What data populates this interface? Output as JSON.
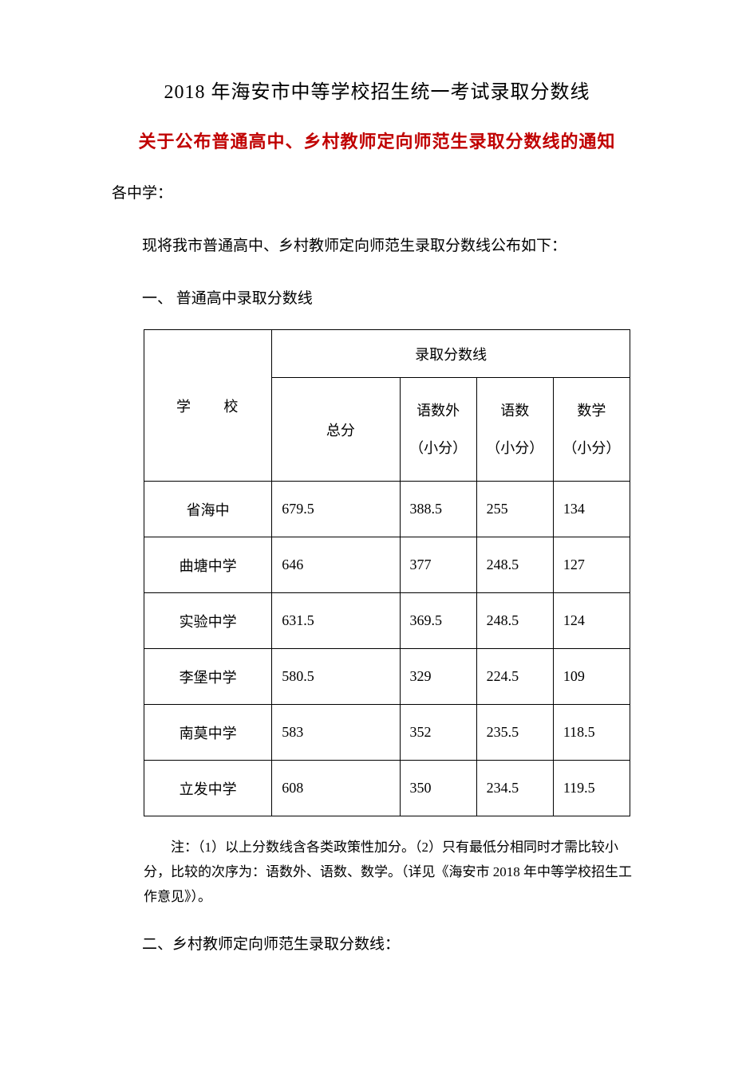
{
  "title_main": "2018 年海安市中等学校招生统一考试录取分数线",
  "title_sub": "关于公布普通高中、乡村教师定向师范生录取分数线的通知",
  "greeting": "各中学：",
  "intro": "现将我市普通高中、乡村教师定向师范生录取分数线公布如下：",
  "section1": "一、 普通高中录取分数线",
  "table": {
    "header_school": "学　　校",
    "header_scoreline": "录取分数线",
    "header_total": "总分",
    "header_ysw": "语数外",
    "header_ys": "语数",
    "header_sx": "数学",
    "header_sub_unit": "（小分）",
    "rows": [
      {
        "school": "省海中",
        "total": "679.5",
        "ysw": "388.5",
        "ys": "255",
        "sx": "134"
      },
      {
        "school": "曲塘中学",
        "total": "646",
        "ysw": "377",
        "ys": "248.5",
        "sx": "127"
      },
      {
        "school": "实验中学",
        "total": "631.5",
        "ysw": "369.5",
        "ys": "248.5",
        "sx": "124"
      },
      {
        "school": "李堡中学",
        "total": "580.5",
        "ysw": "329",
        "ys": "224.5",
        "sx": "109"
      },
      {
        "school": "南莫中学",
        "total": "583",
        "ysw": "352",
        "ys": "235.5",
        "sx": "118.5"
      },
      {
        "school": "立发中学",
        "total": "608",
        "ysw": "350",
        "ys": "234.5",
        "sx": "119.5"
      }
    ]
  },
  "note": "注：（1）以上分数线含各类政策性加分。（2）只有最低分相同时才需比较小分，比较的次序为：语数外、语数、数学。（详见《海安市 2018 年中等学校招生工作意见》）。",
  "section2": "二、乡村教师定向师范生录取分数线："
}
